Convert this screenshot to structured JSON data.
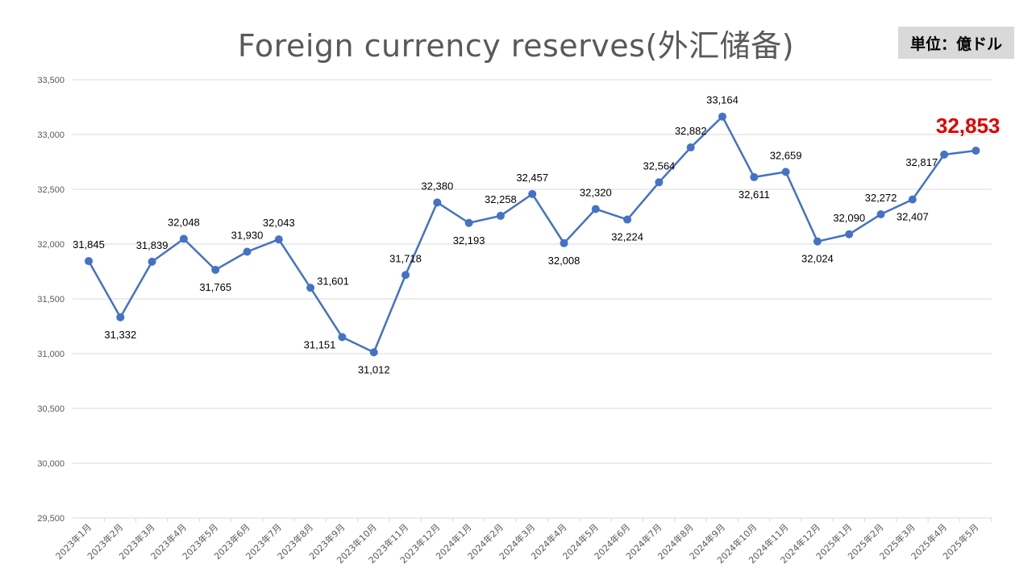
{
  "chart_data": {
    "type": "line",
    "title": "Foreign currency reserves(外汇储备)",
    "unit_label": "単位：億ドル",
    "categories": [
      "2023年1月",
      "2023年2月",
      "2023年3月",
      "2023年4月",
      "2023年5月",
      "2023年6月",
      "2023年7月",
      "2023年8月",
      "2023年9月",
      "2023年10月",
      "2023年11月",
      "2023年12月",
      "2024年1月",
      "2024年2月",
      "2024年3月",
      "2024年4月",
      "2024年5月",
      "2024年6月",
      "2024年7月",
      "2024年8月",
      "2024年9月",
      "2024年10月",
      "2024年11月",
      "2024年12月",
      "2025年1月",
      "2025年2月",
      "2025年3月",
      "2025年4月",
      "2025年5月"
    ],
    "values": [
      31845,
      31332,
      31839,
      32048,
      31765,
      31930,
      32043,
      31601,
      31151,
      31012,
      31718,
      32380,
      32193,
      32258,
      32457,
      32008,
      32320,
      32224,
      32564,
      32882,
      33164,
      32611,
      32659,
      32024,
      32090,
      32272,
      32407,
      32817,
      32853
    ],
    "value_labels": [
      "31,845",
      "31,332",
      "31,839",
      "32,048",
      "31,765",
      "31,930",
      "32,043",
      "31,601",
      "31,151",
      "31,012",
      "31,718",
      "32,380",
      "32,193",
      "32,258",
      "32,457",
      "32,008",
      "32,320",
      "32,224",
      "32,564",
      "32,882",
      "33,164",
      "32,611",
      "32,659",
      "32,024",
      "32,090",
      "32,272",
      "32,407",
      "32,817",
      ""
    ],
    "highlight_label": "32,853",
    "ylim": [
      29500,
      33500
    ],
    "yticks": [
      29500,
      30000,
      30500,
      31000,
      31500,
      32000,
      32500,
      33000,
      33500
    ],
    "ytick_labels": [
      "29,500",
      "30,000",
      "30,500",
      "31,000",
      "31,500",
      "32,000",
      "32,500",
      "33,000",
      "33,500"
    ],
    "grid": true,
    "legend": "none",
    "line_color": "#4472c4",
    "highlight_color": "#e00000"
  }
}
